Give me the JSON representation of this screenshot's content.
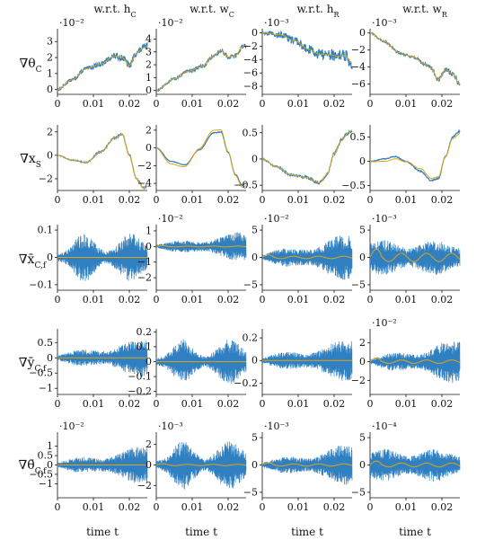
{
  "colors": {
    "series_a": "#2f7fc1",
    "series_b": "#e0a413",
    "axis": "#111111"
  },
  "column_titles": [
    "w.r.t. h_C",
    "w.r.t. w_C",
    "w.r.t. h_R",
    "w.r.t. w_R"
  ],
  "row_labels": [
    "∇θ_C",
    "∇x_S",
    "∇x̄_C,f",
    "∇ȳ_C,f",
    "∇θ̄_C,f"
  ],
  "x_axis_label": "time t",
  "chart_data": {
    "type": "line",
    "layout": "grid 5x4",
    "x_range": [
      0,
      0.025
    ],
    "x_ticks": [
      0,
      0.01,
      0.02
    ],
    "x_tick_labels": [
      "0",
      "0.01",
      "0.02"
    ],
    "panels": [
      {
        "row": 0,
        "col": 0,
        "exponent": "·10⁻²",
        "ylim": [
          -0.3,
          3.8
        ],
        "yticks": [
          0,
          1,
          2,
          3
        ],
        "ytick_labels": [
          "0",
          "1",
          "2",
          "3"
        ],
        "shape": "smooth",
        "knots": [
          [
            0,
            0
          ],
          [
            0.004,
            0.6
          ],
          [
            0.008,
            1.3
          ],
          [
            0.012,
            1.6
          ],
          [
            0.016,
            2.1
          ],
          [
            0.018,
            2.0
          ],
          [
            0.02,
            1.5
          ],
          [
            0.022,
            2.3
          ],
          [
            0.024,
            2.6
          ],
          [
            0.025,
            2.7
          ]
        ],
        "noise": 0.25
      },
      {
        "row": 0,
        "col": 1,
        "exponent": "·10⁻²",
        "ylim": [
          -0.3,
          4.8
        ],
        "yticks": [
          0,
          1,
          2,
          3,
          4
        ],
        "ytick_labels": [
          "0",
          "1",
          "2",
          "3",
          "4"
        ],
        "shape": "smooth",
        "knots": [
          [
            0,
            0
          ],
          [
            0.005,
            0.9
          ],
          [
            0.009,
            1.5
          ],
          [
            0.013,
            1.9
          ],
          [
            0.016,
            2.7
          ],
          [
            0.018,
            3.1
          ],
          [
            0.02,
            2.6
          ],
          [
            0.022,
            2.7
          ],
          [
            0.024,
            3.4
          ],
          [
            0.025,
            3.5
          ]
        ],
        "noise": 0.2
      },
      {
        "row": 0,
        "col": 2,
        "exponent": "·10⁻³",
        "ylim": [
          -9.2,
          0.6
        ],
        "yticks": [
          0,
          -2,
          -4,
          -6,
          -8
        ],
        "ytick_labels": [
          "0",
          "−2",
          "−4",
          "−6",
          "−8"
        ],
        "shape": "smooth",
        "knots": [
          [
            0,
            0
          ],
          [
            0.005,
            -0.3
          ],
          [
            0.009,
            -1.2
          ],
          [
            0.013,
            -2.5
          ],
          [
            0.016,
            -3.2
          ],
          [
            0.019,
            -3.3
          ],
          [
            0.021,
            -3.5
          ],
          [
            0.023,
            -3.4
          ],
          [
            0.025,
            -4.5
          ]
        ],
        "noise": 1.0
      },
      {
        "row": 0,
        "col": 3,
        "exponent": "·10⁻³",
        "ylim": [
          -7.2,
          0.5
        ],
        "yticks": [
          0,
          -2,
          -4,
          -6
        ],
        "ytick_labels": [
          "0",
          "−2",
          "−4",
          "−6"
        ],
        "shape": "smooth",
        "knots": [
          [
            0,
            0
          ],
          [
            0.004,
            -1.0
          ],
          [
            0.008,
            -2.3
          ],
          [
            0.012,
            -2.8
          ],
          [
            0.015,
            -3.6
          ],
          [
            0.017,
            -4.1
          ],
          [
            0.019,
            -5.5
          ],
          [
            0.021,
            -4.3
          ],
          [
            0.023,
            -4.8
          ],
          [
            0.025,
            -6.0
          ]
        ],
        "noise": 0.3
      },
      {
        "row": 1,
        "col": 0,
        "exponent": "",
        "ylim": [
          -3.0,
          2.6
        ],
        "yticks": [
          -2,
          0,
          2
        ],
        "ytick_labels": [
          "−2",
          "0",
          "2"
        ],
        "shape": "smooth",
        "knots": [
          [
            0,
            0
          ],
          [
            0.004,
            -0.4
          ],
          [
            0.008,
            -0.6
          ],
          [
            0.012,
            0.3
          ],
          [
            0.016,
            1.5
          ],
          [
            0.018,
            1.8
          ],
          [
            0.02,
            0
          ],
          [
            0.022,
            -2.0
          ],
          [
            0.024,
            -2.8
          ],
          [
            0.025,
            -2.6
          ]
        ],
        "noise": 0.1
      },
      {
        "row": 1,
        "col": 1,
        "exponent": "",
        "ylim": [
          -4.8,
          2.6
        ],
        "yticks": [
          -4,
          -2,
          0,
          2
        ],
        "ytick_labels": [
          "−4",
          "−2",
          "0",
          "2"
        ],
        "shape": "smooth",
        "knots": [
          [
            0,
            0
          ],
          [
            0.004,
            -1.5
          ],
          [
            0.008,
            -1.9
          ],
          [
            0.012,
            -0.2
          ],
          [
            0.016,
            1.7
          ],
          [
            0.018,
            1.8
          ],
          [
            0.02,
            -0.5
          ],
          [
            0.022,
            -3.0
          ],
          [
            0.024,
            -4.2
          ],
          [
            0.025,
            -4.0
          ]
        ],
        "noise": 0.05
      },
      {
        "row": 1,
        "col": 2,
        "exponent": "",
        "ylim": [
          -0.6,
          0.65
        ],
        "yticks": [
          -0.5,
          0,
          0.5
        ],
        "ytick_labels": [
          "−0.5",
          "0",
          "0.5"
        ],
        "shape": "smooth",
        "knots": [
          [
            0,
            0
          ],
          [
            0.004,
            -0.15
          ],
          [
            0.008,
            -0.3
          ],
          [
            0.012,
            -0.35
          ],
          [
            0.016,
            -0.45
          ],
          [
            0.018,
            -0.3
          ],
          [
            0.02,
            0.1
          ],
          [
            0.022,
            0.35
          ],
          [
            0.024,
            0.5
          ],
          [
            0.025,
            0.55
          ]
        ],
        "noise": 0.04
      },
      {
        "row": 1,
        "col": 3,
        "exponent": "",
        "ylim": [
          -0.6,
          0.75
        ],
        "yticks": [
          -0.5,
          0,
          0.5
        ],
        "ytick_labels": [
          "−0.5",
          "0",
          "0.5"
        ],
        "shape": "smooth",
        "knots": [
          [
            0,
            0
          ],
          [
            0.004,
            0.05
          ],
          [
            0.007,
            0.1
          ],
          [
            0.01,
            0.0
          ],
          [
            0.014,
            -0.2
          ],
          [
            0.017,
            -0.4
          ],
          [
            0.019,
            -0.35
          ],
          [
            0.021,
            0.1
          ],
          [
            0.023,
            0.5
          ],
          [
            0.025,
            0.62
          ]
        ],
        "noise": 0.02
      },
      {
        "row": 2,
        "col": 0,
        "exponent": "",
        "ylim": [
          -0.12,
          0.12
        ],
        "yticks": [
          -0.1,
          0,
          0.1
        ],
        "ytick_labels": [
          "−0.1",
          "0",
          "0.1"
        ],
        "shape": "osc",
        "amp": 0.09,
        "envelope": "double",
        "orange": 0
      },
      {
        "row": 2,
        "col": 1,
        "exponent": "·10⁻²",
        "ylim": [
          -2.8,
          1.4
        ],
        "yticks": [
          -2,
          -1,
          0,
          1
        ],
        "ytick_labels": [
          "−2",
          "−1",
          "0",
          "1"
        ],
        "shape": "osc",
        "amp": 1.0,
        "envelope": "rising",
        "orange": 0.1
      },
      {
        "row": 2,
        "col": 2,
        "exponent": "·10⁻²",
        "ylim": [
          -6,
          6
        ],
        "yticks": [
          -5,
          0,
          5
        ],
        "ytick_labels": [
          "−5",
          "0",
          "5"
        ],
        "shape": "osc",
        "amp": 4.5,
        "envelope": "rising",
        "orange": 0.2
      },
      {
        "row": 2,
        "col": 3,
        "exponent": "·10⁻³",
        "ylim": [
          -6,
          6
        ],
        "yticks": [
          -5,
          0,
          5
        ],
        "ytick_labels": [
          "−5",
          "0",
          "5"
        ],
        "shape": "osc",
        "amp": 3.8,
        "envelope": "flat",
        "orange": 0.8
      },
      {
        "row": 3,
        "col": 0,
        "exponent": "",
        "ylim": [
          -1.2,
          0.95
        ],
        "yticks": [
          -1,
          -0.5,
          0,
          0.5
        ],
        "ytick_labels": [
          "−1",
          "−0.5",
          "0",
          "0.5"
        ],
        "shape": "osc",
        "amp": 0.7,
        "envelope": "rising",
        "orange": 0
      },
      {
        "row": 3,
        "col": 1,
        "exponent": "",
        "ylim": [
          -0.22,
          0.22
        ],
        "yticks": [
          -0.2,
          -0.1,
          0,
          0.1,
          0.2
        ],
        "ytick_labels": [
          "−0.2",
          "−0.1",
          "0",
          "0.1",
          "0.2"
        ],
        "shape": "osc",
        "amp": 0.15,
        "envelope": "double",
        "orange": 0.01
      },
      {
        "row": 3,
        "col": 2,
        "exponent": "",
        "ylim": [
          -0.3,
          0.28
        ],
        "yticks": [
          -0.2,
          0,
          0.2
        ],
        "ytick_labels": [
          "−0.2",
          "0",
          "0.2"
        ],
        "shape": "osc",
        "amp": 0.2,
        "envelope": "rising",
        "orange": 0
      },
      {
        "row": 3,
        "col": 3,
        "exponent": "·10⁻²",
        "ylim": [
          -3.5,
          3.5
        ],
        "yticks": [
          -2,
          0,
          2
        ],
        "ytick_labels": [
          "−2",
          "0",
          "2"
        ],
        "shape": "osc",
        "amp": 2.5,
        "envelope": "rising",
        "orange": 0.3
      },
      {
        "row": 4,
        "col": 0,
        "exponent": "·10⁻²",
        "ylim": [
          -1.75,
          1.75
        ],
        "yticks": [
          -1,
          -0.5,
          0,
          0.5,
          1
        ],
        "ytick_labels": [
          "−1",
          "−0.5",
          "0",
          "0.5",
          "1"
        ],
        "shape": "osc",
        "amp": 1.1,
        "envelope": "rising",
        "orange": 0
      },
      {
        "row": 4,
        "col": 1,
        "exponent": "·10⁻³",
        "ylim": [
          -3.2,
          3.2
        ],
        "yticks": [
          -2,
          0,
          2
        ],
        "ytick_labels": [
          "−2",
          "0",
          "2"
        ],
        "shape": "osc",
        "amp": 2.4,
        "envelope": "double",
        "orange": 0.1
      },
      {
        "row": 4,
        "col": 2,
        "exponent": "·10⁻³",
        "ylim": [
          -6,
          6
        ],
        "yticks": [
          -5,
          0,
          5
        ],
        "ytick_labels": [
          "−5",
          "0",
          "5"
        ],
        "shape": "osc",
        "amp": 4.0,
        "envelope": "rising",
        "orange": 0.2
      },
      {
        "row": 4,
        "col": 3,
        "exponent": "·10⁻⁴",
        "ylim": [
          -6,
          6
        ],
        "yticks": [
          -5,
          0,
          5
        ],
        "ytick_labels": [
          "−5",
          "0",
          "5"
        ],
        "shape": "osc",
        "amp": 3.6,
        "envelope": "flat",
        "orange": 0.4
      }
    ]
  }
}
